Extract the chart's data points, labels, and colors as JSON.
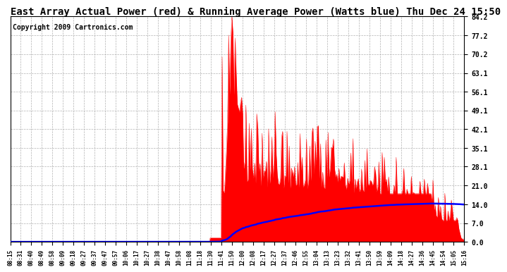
{
  "title": "East Array Actual Power (red) & Running Average Power (Watts blue) Thu Dec 24 15:50",
  "copyright": "Copyright 2009 Cartronics.com",
  "yticks": [
    0.0,
    7.0,
    14.0,
    21.0,
    28.1,
    35.1,
    42.1,
    49.1,
    56.1,
    63.1,
    70.2,
    77.2,
    84.2
  ],
  "ylim": [
    0.0,
    84.2
  ],
  "xtick_labels": [
    "08:15",
    "08:31",
    "08:40",
    "08:49",
    "08:58",
    "09:09",
    "09:18",
    "09:27",
    "09:37",
    "09:47",
    "09:57",
    "10:06",
    "10:17",
    "10:27",
    "10:38",
    "10:47",
    "10:58",
    "11:08",
    "11:18",
    "11:30",
    "11:41",
    "11:50",
    "12:00",
    "12:08",
    "12:17",
    "12:27",
    "12:37",
    "12:46",
    "12:55",
    "13:04",
    "13:13",
    "13:23",
    "13:32",
    "13:41",
    "13:50",
    "13:59",
    "14:09",
    "14:18",
    "14:27",
    "14:36",
    "14:45",
    "14:54",
    "15:05",
    "15:16"
  ],
  "actual_color": "#FF0000",
  "avg_color": "#0000FF",
  "bg_color": "#FFFFFF",
  "grid_color": "#AAAAAA",
  "title_fontsize": 10,
  "copyright_fontsize": 7
}
